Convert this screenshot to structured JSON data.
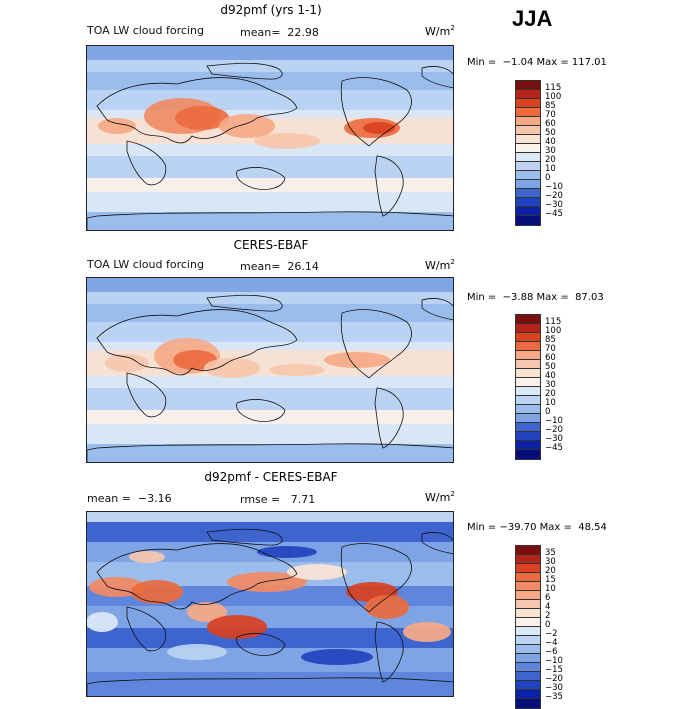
{
  "season": "JJA",
  "units": "W/m",
  "units_exp": "2",
  "palettes": {
    "abs": [
      "#7a0d0d",
      "#b52418",
      "#d9411f",
      "#ec6a3d",
      "#f28a62",
      "#f6a985",
      "#f8c6ad",
      "#fbe3d4",
      "#fdf2ea",
      "#dbe8f7",
      "#bcd4f2",
      "#9bbded",
      "#7ea4e6",
      "#5f86dc",
      "#3e64d0",
      "#2243bf",
      "#0b22a6",
      "#050e7a"
    ],
    "diff": [
      "#7a0d0d",
      "#b52418",
      "#d9411f",
      "#ec6a3d",
      "#f28a62",
      "#f6a985",
      "#f8c6ad",
      "#fbe3d4",
      "#fdf2ea",
      "#dbe8f7",
      "#bcd4f2",
      "#9bbded",
      "#7ea4e6",
      "#5f86dc",
      "#3e64d0",
      "#2243bf",
      "#0b22a6",
      "#050e7a"
    ]
  },
  "panels": [
    {
      "title": "d92pmf (yrs 1-1)",
      "left_label": "TOA LW cloud forcing",
      "mean_text": "mean=  22.98",
      "rmse_text": "",
      "minmax": "Min =  −1.04 Max = 117.01",
      "levels": [
        "115",
        "100",
        "85",
        "70",
        "60",
        "50",
        "40",
        "30",
        "20",
        "10",
        "0",
        "−10",
        "−20",
        "−30",
        "−45"
      ]
    },
    {
      "title": "CERES-EBAF",
      "left_label": "TOA LW cloud forcing",
      "mean_text": "mean=  26.14",
      "rmse_text": "",
      "minmax": "Min =  −3.88 Max =  87.03",
      "levels": [
        "115",
        "100",
        "85",
        "70",
        "60",
        "50",
        "40",
        "30",
        "20",
        "10",
        "0",
        "−10",
        "−20",
        "−30",
        "−45"
      ]
    },
    {
      "title": "d92pmf - CERES-EBAF",
      "left_label": "mean =  −3.16",
      "mean_text": "",
      "rmse_text": "rmse =   7.71",
      "minmax": "Min = −39.70 Max =  48.54",
      "levels": [
        "35",
        "30",
        "20",
        "15",
        "10",
        "6",
        "4",
        "2",
        "0",
        "−2",
        "−4",
        "−6",
        "−10",
        "−15",
        "−20",
        "−30",
        "−35"
      ]
    }
  ]
}
